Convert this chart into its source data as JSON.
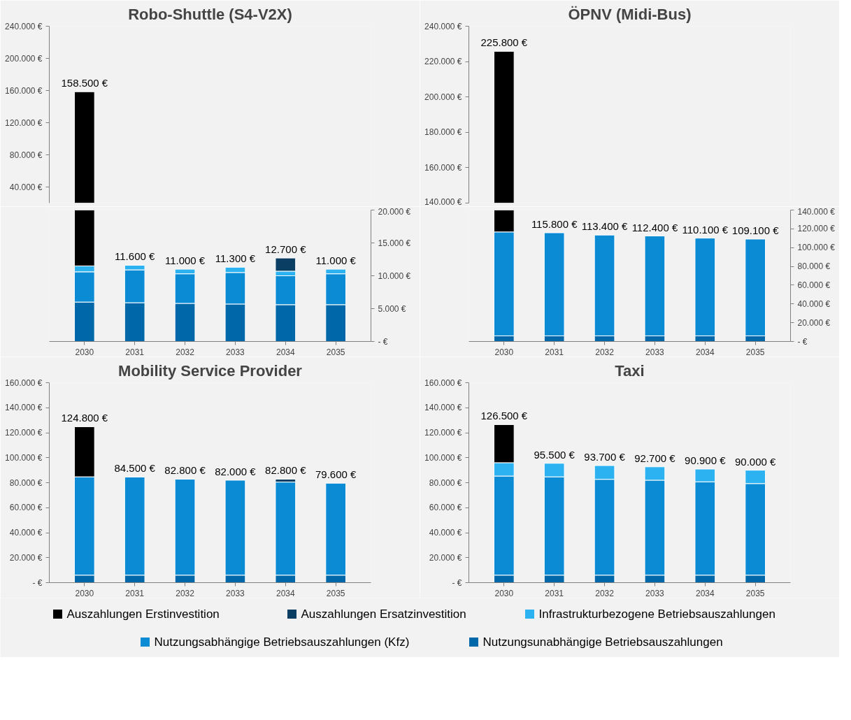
{
  "chart_data": [
    {
      "type": "bar",
      "title": "Robo-Shuttle (S4-V2X)",
      "categories": [
        "2030",
        "2031",
        "2032",
        "2033",
        "2034",
        "2035"
      ],
      "tick_labels": "y",
      "ylim": [
        20000,
        240000
      ],
      "yticks": [
        {
          "value": 40000,
          "label": "40.000 €"
        },
        {
          "value": 80000,
          "label": "80.000 €"
        },
        {
          "value": 120000,
          "label": "120.000 €"
        },
        {
          "value": 160000,
          "label": "160.000 €"
        },
        {
          "value": 200000,
          "label": "200.000 €"
        },
        {
          "value": 240000,
          "label": "240.000 €"
        }
      ],
      "series": [
        {
          "color": "#000000",
          "values": [
            138500,
            null,
            null,
            null,
            null,
            null
          ],
          "base": [
            20000,
            null,
            null,
            null,
            null,
            null
          ]
        }
      ],
      "annotations": [
        {
          "text": "158.500 €",
          "x": "2030",
          "y": 158500
        }
      ]
    },
    {
      "type": "bar",
      "stacked": true,
      "categories": [
        "2030",
        "2031",
        "2032",
        "2033",
        "2034",
        "2035"
      ],
      "y2lim": [
        0,
        20000
      ],
      "y2ticks": [
        {
          "value": 0,
          "label": "- €"
        },
        {
          "value": 5000,
          "label": "5.000 €"
        },
        {
          "value": 10000,
          "label": "10.000 €"
        },
        {
          "value": 15000,
          "label": "15.000 €"
        },
        {
          "value": 20000,
          "label": "20.000 €"
        }
      ],
      "series": [
        {
          "color": "#0068a8",
          "axis": "y2",
          "values": [
            6000,
            5900,
            5800,
            5700,
            5600,
            5600
          ]
        },
        {
          "color": "#0b8bd4",
          "axis": "y2",
          "values": [
            4600,
            5000,
            4500,
            4800,
            4400,
            4700
          ]
        },
        {
          "color": "#2cb1f1",
          "axis": "y2",
          "values": [
            900,
            700,
            700,
            800,
            700,
            700
          ]
        },
        {
          "color": "#0a3f63",
          "axis": "y2",
          "values": [
            null,
            null,
            null,
            null,
            2000,
            null
          ]
        },
        {
          "color": "#000000",
          "axis": "y2",
          "values": [
            8500,
            null,
            null,
            null,
            null,
            null
          ]
        }
      ],
      "totals": [
        null,
        "11.600 €",
        "11.000 €",
        "11.300 €",
        "12.700 €",
        "11.000 €"
      ]
    },
    {
      "type": "bar",
      "title": "ÖPNV (Midi-Bus)",
      "categories": [
        "2030",
        "2031",
        "2032",
        "2033",
        "2034",
        "2035"
      ],
      "tick_labels": "y",
      "ylim": [
        140000,
        240000
      ],
      "yticks": [
        {
          "value": 140000,
          "label": "140.000 €"
        },
        {
          "value": 160000,
          "label": "160.000 €"
        },
        {
          "value": 180000,
          "label": "180.000 €"
        },
        {
          "value": 200000,
          "label": "200.000 €"
        },
        {
          "value": 220000,
          "label": "220.000 €"
        },
        {
          "value": 240000,
          "label": "240.000 €"
        }
      ],
      "series": [
        {
          "color": "#000000",
          "values": [
            85800,
            null,
            null,
            null,
            null,
            null
          ],
          "base": [
            140000,
            null,
            null,
            null,
            null,
            null
          ]
        }
      ],
      "annotations": [
        {
          "text": "225.800 €",
          "x": "2030",
          "y": 225800
        }
      ]
    },
    {
      "type": "bar",
      "stacked": true,
      "categories": [
        "2030",
        "2031",
        "2032",
        "2033",
        "2034",
        "2035"
      ],
      "y2lim": [
        0,
        140000
      ],
      "y2ticks": [
        {
          "value": 0,
          "label": "- €"
        },
        {
          "value": 20000,
          "label": "20.000 €"
        },
        {
          "value": 40000,
          "label": "40.000 €"
        },
        {
          "value": 60000,
          "label": "60.000 €"
        },
        {
          "value": 80000,
          "label": "80.000 €"
        },
        {
          "value": 100000,
          "label": "100.000 €"
        },
        {
          "value": 120000,
          "label": "120.000 €"
        },
        {
          "value": 140000,
          "label": "140.000 €"
        }
      ],
      "series": [
        {
          "color": "#0068a8",
          "axis": "y2",
          "values": [
            6000,
            6000,
            6000,
            6000,
            6000,
            6000
          ]
        },
        {
          "color": "#0b8bd4",
          "axis": "y2",
          "values": [
            110700,
            109800,
            107400,
            106400,
            104100,
            103100
          ]
        },
        {
          "color": "#000000",
          "axis": "y2",
          "values": [
            23300,
            null,
            null,
            null,
            null,
            null
          ]
        }
      ],
      "totals": [
        null,
        "115.800 €",
        "113.400 €",
        "112.400 €",
        "110.100 €",
        "109.100 €"
      ]
    },
    {
      "type": "bar",
      "stacked": true,
      "title": "Mobility Service Provider",
      "categories": [
        "2030",
        "2031",
        "2032",
        "2033",
        "2034",
        "2035"
      ],
      "ylim": [
        0,
        160000
      ],
      "yticks": [
        {
          "value": 0,
          "label": "- €"
        },
        {
          "value": 20000,
          "label": "20.000 €"
        },
        {
          "value": 40000,
          "label": "40.000 €"
        },
        {
          "value": 60000,
          "label": "60.000 €"
        },
        {
          "value": 80000,
          "label": "80.000 €"
        },
        {
          "value": 100000,
          "label": "100.000 €"
        },
        {
          "value": 120000,
          "label": "120.000 €"
        },
        {
          "value": 140000,
          "label": "140.000 €"
        },
        {
          "value": 160000,
          "label": "160.000 €"
        }
      ],
      "series": [
        {
          "color": "#0068a8",
          "values": [
            6000,
            6000,
            6000,
            6000,
            6000,
            6000
          ]
        },
        {
          "color": "#0b8bd4",
          "values": [
            78700,
            78500,
            76800,
            76000,
            74500,
            73600
          ]
        },
        {
          "color": "#0a3f63",
          "values": [
            null,
            null,
            null,
            null,
            2300,
            null
          ]
        },
        {
          "color": "#000000",
          "values": [
            40100,
            null,
            null,
            null,
            null,
            null
          ]
        }
      ],
      "totals": [
        "124.800 €",
        "84.500 €",
        "82.800 €",
        "82.000 €",
        "82.800 €",
        "79.600 €"
      ]
    },
    {
      "type": "bar",
      "stacked": true,
      "title": "Taxi",
      "categories": [
        "2030",
        "2031",
        "2032",
        "2033",
        "2034",
        "2035"
      ],
      "legend": "bottom",
      "ylim": [
        0,
        160000
      ],
      "yticks": [
        {
          "value": 0,
          "label": "- €"
        },
        {
          "value": 20000,
          "label": "20.000 €"
        },
        {
          "value": 40000,
          "label": "40.000 €"
        },
        {
          "value": 60000,
          "label": "60.000 €"
        },
        {
          "value": 80000,
          "label": "80.000 €"
        },
        {
          "value": 100000,
          "label": "100.000 €"
        },
        {
          "value": 120000,
          "label": "120.000 €"
        },
        {
          "value": 140000,
          "label": "140.000 €"
        },
        {
          "value": 160000,
          "label": "160.000 €"
        }
      ],
      "series": [
        {
          "name": "Nutzungsunabhängige Betriebsauszahlungen",
          "color": "#0068a8",
          "values": [
            6000,
            6000,
            6000,
            6000,
            6000,
            6000
          ]
        },
        {
          "name": "Nutzungsabhängige Betriebsauszahlungen (Kfz)",
          "color": "#0b8bd4",
          "values": [
            79300,
            78700,
            76700,
            76000,
            74700,
            73300
          ]
        },
        {
          "name": "Infrastrukturbezogene Betriebsauszahlungen",
          "color": "#2cb1f1",
          "values": [
            10700,
            10800,
            11000,
            10700,
            10200,
            10700
          ]
        },
        {
          "name": "Auszahlungen Ersatzinvestition",
          "color": "#0a3f63",
          "values": [
            null,
            null,
            null,
            null,
            null,
            null
          ]
        },
        {
          "name": "Auszahlungen Erstinvestition",
          "color": "#000000",
          "values": [
            30500,
            null,
            null,
            null,
            null,
            null
          ]
        }
      ],
      "totals": [
        "126.500 €",
        "95.500 €",
        "93.700 €",
        "92.700 €",
        "90.900 €",
        "90.000 €"
      ]
    }
  ]
}
